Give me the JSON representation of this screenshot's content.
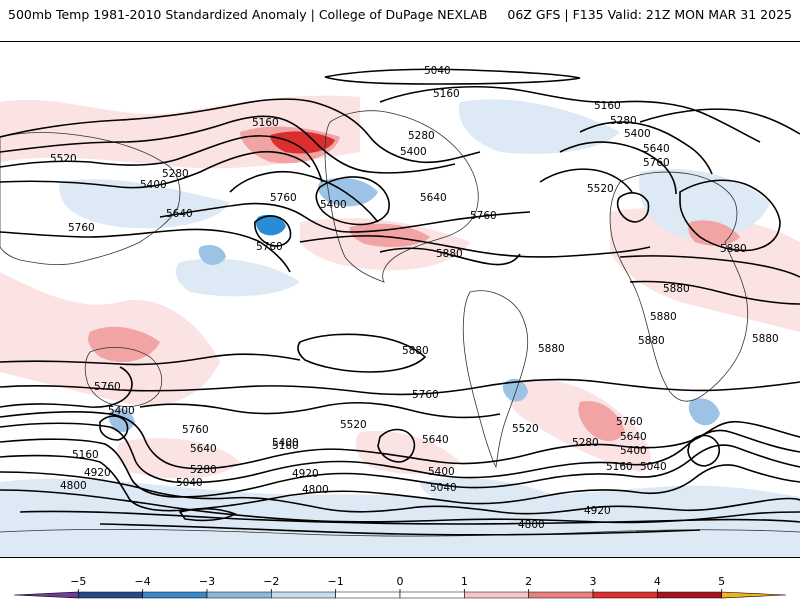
{
  "header": {
    "title_left": "500mb Temp 1981-2010 Standardized Anomaly | College of DuPage NEXLAB",
    "title_right": "06Z GFS | F135 Valid: 21Z MON MAR 31 2025"
  },
  "map": {
    "contour_labels": [
      {
        "text": "5040"
      },
      {
        "text": "5160"
      },
      {
        "text": "5160"
      },
      {
        "text": "5160"
      },
      {
        "text": "5280"
      },
      {
        "text": "5280"
      },
      {
        "text": "5520"
      },
      {
        "text": "5520"
      },
      {
        "text": "5400"
      },
      {
        "text": "5400"
      },
      {
        "text": "5400"
      },
      {
        "text": "5400"
      },
      {
        "text": "5280"
      },
      {
        "text": "5640"
      },
      {
        "text": "5640"
      },
      {
        "text": "5640"
      },
      {
        "text": "5760"
      },
      {
        "text": "5760"
      },
      {
        "text": "5760"
      },
      {
        "text": "5760"
      },
      {
        "text": "5760"
      },
      {
        "text": "5880"
      },
      {
        "text": "5880"
      },
      {
        "text": "5880"
      },
      {
        "text": "5880"
      },
      {
        "text": "5880"
      },
      {
        "text": "5880"
      },
      {
        "text": "5880"
      },
      {
        "text": "5880"
      },
      {
        "text": "5760"
      },
      {
        "text": "5760"
      },
      {
        "text": "5760"
      },
      {
        "text": "5520"
      },
      {
        "text": "5520"
      },
      {
        "text": "5400"
      },
      {
        "text": "5400"
      },
      {
        "text": "5640"
      },
      {
        "text": "5640"
      },
      {
        "text": "5640"
      },
      {
        "text": "5160"
      },
      {
        "text": "5160"
      },
      {
        "text": "5280"
      },
      {
        "text": "5280"
      },
      {
        "text": "5400"
      },
      {
        "text": "5400"
      },
      {
        "text": "5040"
      },
      {
        "text": "5040"
      },
      {
        "text": "5040"
      },
      {
        "text": "5160"
      },
      {
        "text": "4920"
      },
      {
        "text": "4920"
      },
      {
        "text": "4920"
      },
      {
        "text": "4800"
      },
      {
        "text": "4800"
      },
      {
        "text": "4800"
      },
      {
        "text": "5760"
      }
    ],
    "anomaly_colors": {
      "cold": "#2b8cd6",
      "cool": "#a8cbe8",
      "pale_cool": "#dbe8f5",
      "pale_warm": "#fadcdc",
      "warm": "#f2a0a0",
      "hot": "#d32a2a",
      "very_hot": "#a8161f"
    }
  },
  "colorbar": {
    "ticks": [
      "−5",
      "−4",
      "−3",
      "−2",
      "−1",
      "0",
      "1",
      "2",
      "3",
      "4",
      "5"
    ],
    "colors": [
      "#6a3d9a",
      "#2a4a86",
      "#3a86c8",
      "#8fb8de",
      "#c7dcef",
      "#ffffff",
      "#ffffff",
      "#f5c5c5",
      "#e88080",
      "#d93030",
      "#a51320",
      "#f2b21c"
    ]
  }
}
